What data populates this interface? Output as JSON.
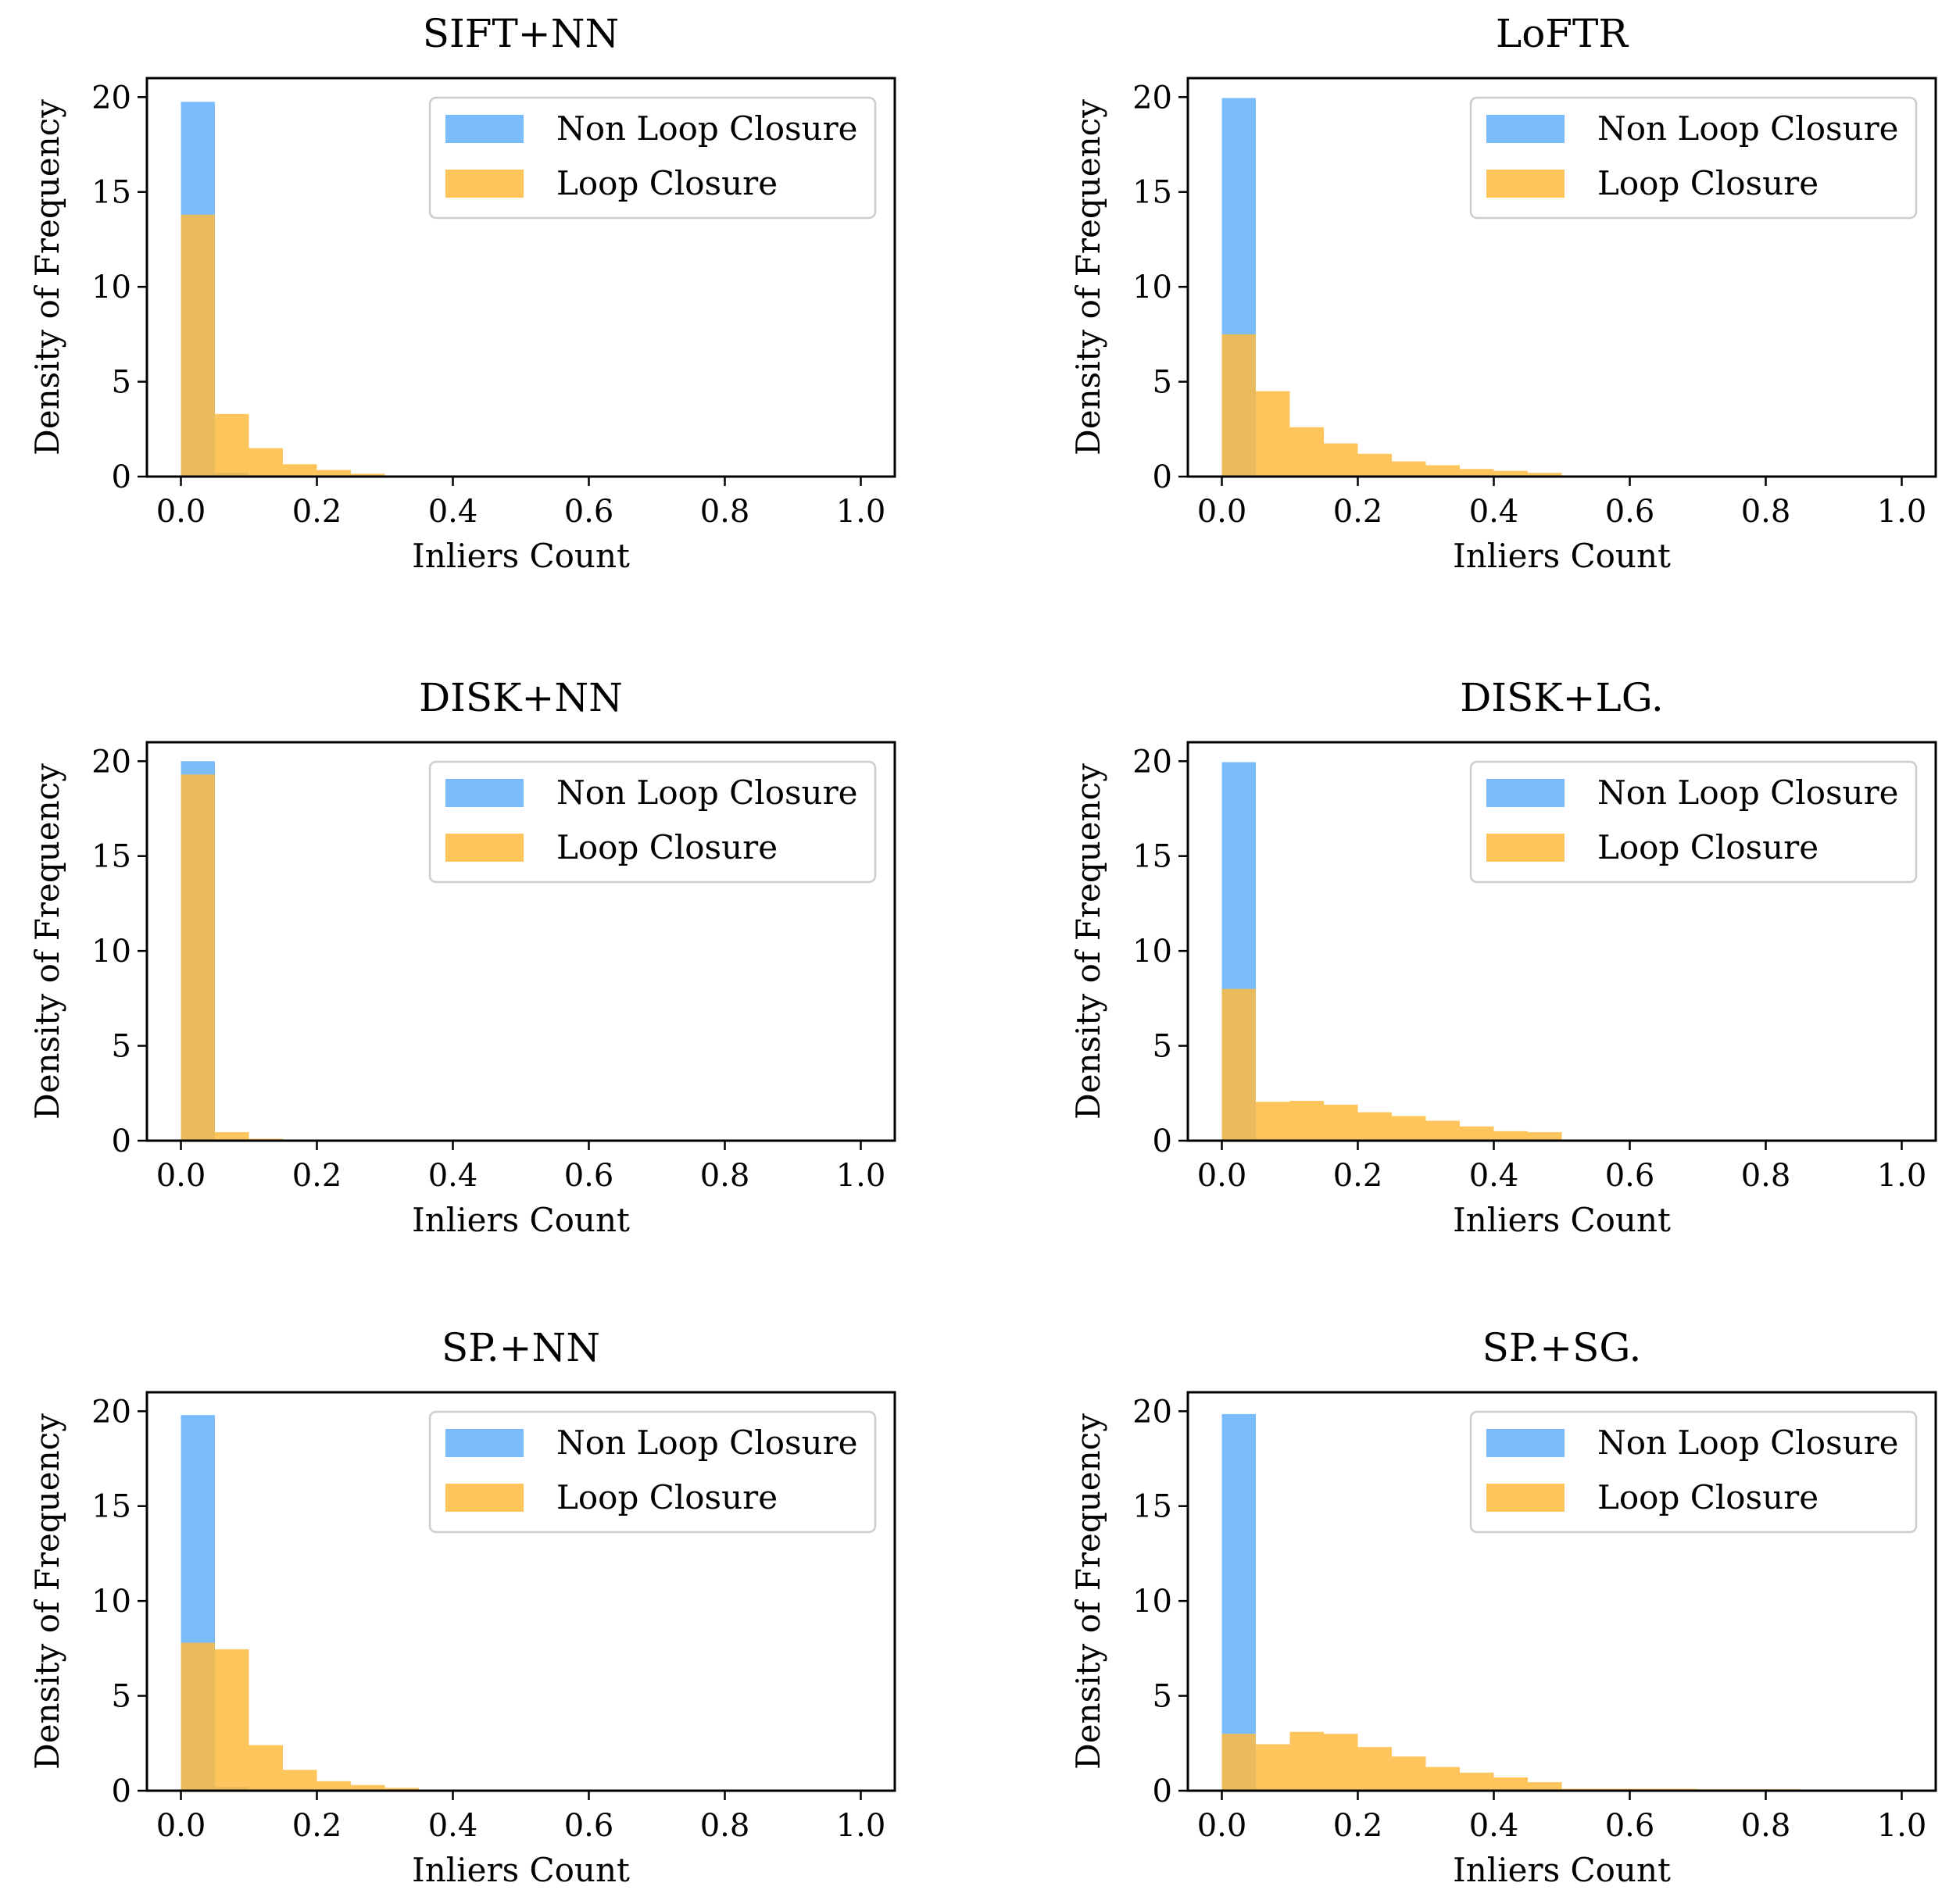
{
  "chart_data": [
    {
      "type": "bar",
      "title": "SIFT+NN",
      "xlabel": "Inliers Count",
      "ylabel": "Density of Frequency",
      "xlim": [
        -0.05,
        1.05
      ],
      "ylim": [
        0,
        21
      ],
      "xticks": [
        "0.0",
        "0.2",
        "0.4",
        "0.6",
        "0.8",
        "1.0"
      ],
      "yticks": [
        "0",
        "5",
        "10",
        "15",
        "20"
      ],
      "bin_edges": [
        0,
        0.05,
        0.1,
        0.15,
        0.2,
        0.25,
        0.3,
        0.35,
        0.4,
        0.45,
        0.5
      ],
      "legend_position": "top-right",
      "series": [
        {
          "name": "Non Loop Closure",
          "color": "#64b0fb",
          "values": [
            19.75,
            0.2,
            0.05,
            0,
            0,
            0,
            0,
            0,
            0,
            0
          ]
        },
        {
          "name": "Loop Closure",
          "color": "#fdbb3f",
          "values": [
            13.8,
            3.3,
            1.5,
            0.65,
            0.35,
            0.15,
            0.05,
            0.03,
            0,
            0
          ]
        }
      ]
    },
    {
      "type": "bar",
      "title": "LoFTR",
      "xlabel": "Inliers Count",
      "ylabel": "Density of Frequency",
      "xlim": [
        -0.05,
        1.05
      ],
      "ylim": [
        0,
        21
      ],
      "xticks": [
        "0.0",
        "0.2",
        "0.4",
        "0.6",
        "0.8",
        "1.0"
      ],
      "yticks": [
        "0",
        "5",
        "10",
        "15",
        "20"
      ],
      "bin_edges": [
        0,
        0.05,
        0.1,
        0.15,
        0.2,
        0.25,
        0.3,
        0.35,
        0.4,
        0.45,
        0.5
      ],
      "legend_position": "top-right",
      "series": [
        {
          "name": "Non Loop Closure",
          "color": "#64b0fb",
          "values": [
            19.95,
            0.05,
            0,
            0,
            0,
            0,
            0,
            0,
            0,
            0
          ]
        },
        {
          "name": "Loop Closure",
          "color": "#fdbb3f",
          "values": [
            7.5,
            4.5,
            2.6,
            1.75,
            1.2,
            0.8,
            0.6,
            0.4,
            0.3,
            0.2
          ]
        }
      ]
    },
    {
      "type": "bar",
      "title": "DISK+NN",
      "xlabel": "Inliers Count",
      "ylabel": "Density of Frequency",
      "xlim": [
        -0.05,
        1.05
      ],
      "ylim": [
        0,
        21
      ],
      "xticks": [
        "0.0",
        "0.2",
        "0.4",
        "0.6",
        "0.8",
        "1.0"
      ],
      "yticks": [
        "0",
        "5",
        "10",
        "15",
        "20"
      ],
      "bin_edges": [
        0,
        0.05,
        0.1,
        0.15,
        0.2,
        0.25,
        0.3,
        0.35,
        0.4,
        0.45,
        0.5
      ],
      "legend_position": "top-right",
      "series": [
        {
          "name": "Non Loop Closure",
          "color": "#64b0fb",
          "values": [
            20.0,
            0,
            0,
            0,
            0,
            0,
            0,
            0,
            0,
            0
          ]
        },
        {
          "name": "Loop Closure",
          "color": "#fdbb3f",
          "values": [
            19.3,
            0.45,
            0.1,
            0.05,
            0,
            0,
            0,
            0,
            0,
            0
          ]
        }
      ]
    },
    {
      "type": "bar",
      "title": "DISK+LG.",
      "xlabel": "Inliers Count",
      "ylabel": "Density of Frequency",
      "xlim": [
        -0.05,
        1.05
      ],
      "ylim": [
        0,
        21
      ],
      "xticks": [
        "0.0",
        "0.2",
        "0.4",
        "0.6",
        "0.8",
        "1.0"
      ],
      "yticks": [
        "0",
        "5",
        "10",
        "15",
        "20"
      ],
      "bin_edges": [
        0,
        0.05,
        0.1,
        0.15,
        0.2,
        0.25,
        0.3,
        0.35,
        0.4,
        0.45,
        0.5,
        0.55,
        0.6,
        0.65,
        0.7,
        0.75,
        0.8,
        0.85,
        0.9,
        0.95,
        1.0
      ],
      "legend_position": "top-right",
      "series": [
        {
          "name": "Non Loop Closure",
          "color": "#64b0fb",
          "values": [
            19.95,
            0.05,
            0,
            0,
            0,
            0,
            0,
            0,
            0,
            0,
            0,
            0,
            0,
            0,
            0,
            0,
            0,
            0,
            0,
            0
          ]
        },
        {
          "name": "Loop Closure",
          "color": "#fdbb3f",
          "values": [
            8.0,
            2.05,
            2.1,
            1.9,
            1.5,
            1.3,
            1.05,
            0.75,
            0.5,
            0.45,
            0.05,
            0.05,
            0.04,
            0.04,
            0.04,
            0.04,
            0.04,
            0.04,
            0.04,
            0.04
          ]
        }
      ]
    },
    {
      "type": "bar",
      "title": "SP.+NN",
      "xlabel": "Inliers Count",
      "ylabel": "Density of Frequency",
      "xlim": [
        -0.05,
        1.05
      ],
      "ylim": [
        0,
        21
      ],
      "xticks": [
        "0.0",
        "0.2",
        "0.4",
        "0.6",
        "0.8",
        "1.0"
      ],
      "yticks": [
        "0",
        "5",
        "10",
        "15",
        "20"
      ],
      "bin_edges": [
        0,
        0.05,
        0.1,
        0.15,
        0.2,
        0.25,
        0.3,
        0.35,
        0.4,
        0.45,
        0.5
      ],
      "legend_position": "top-right",
      "series": [
        {
          "name": "Non Loop Closure",
          "color": "#64b0fb",
          "values": [
            19.8,
            0.2,
            0.05,
            0,
            0,
            0,
            0,
            0,
            0,
            0
          ]
        },
        {
          "name": "Loop Closure",
          "color": "#fdbb3f",
          "values": [
            7.8,
            7.45,
            2.4,
            1.1,
            0.5,
            0.3,
            0.15,
            0.05,
            0,
            0
          ]
        }
      ]
    },
    {
      "type": "bar",
      "title": "SP.+SG.",
      "xlabel": "Inliers Count",
      "ylabel": "Density of Frequency",
      "xlim": [
        -0.05,
        1.05
      ],
      "ylim": [
        0,
        21
      ],
      "xticks": [
        "0.0",
        "0.2",
        "0.4",
        "0.6",
        "0.8",
        "1.0"
      ],
      "yticks": [
        "0",
        "5",
        "10",
        "15",
        "20"
      ],
      "bin_edges": [
        0,
        0.05,
        0.1,
        0.15,
        0.2,
        0.25,
        0.3,
        0.35,
        0.4,
        0.45,
        0.5,
        0.55,
        0.6,
        0.65,
        0.7,
        0.75,
        0.8,
        0.85,
        0.9,
        0.95,
        1.0
      ],
      "legend_position": "top-right",
      "series": [
        {
          "name": "Non Loop Closure",
          "color": "#64b0fb",
          "values": [
            19.85,
            0.05,
            0,
            0,
            0,
            0,
            0,
            0,
            0,
            0,
            0,
            0,
            0,
            0,
            0,
            0,
            0,
            0,
            0,
            0
          ]
        },
        {
          "name": "Loop Closure",
          "color": "#fdbb3f",
          "values": [
            3.0,
            2.45,
            3.1,
            3.0,
            2.3,
            1.8,
            1.25,
            0.95,
            0.7,
            0.45,
            0.1,
            0.1,
            0.1,
            0.1,
            0.08,
            0.08,
            0.08,
            0.06,
            0.06,
            0.06
          ]
        }
      ]
    }
  ]
}
